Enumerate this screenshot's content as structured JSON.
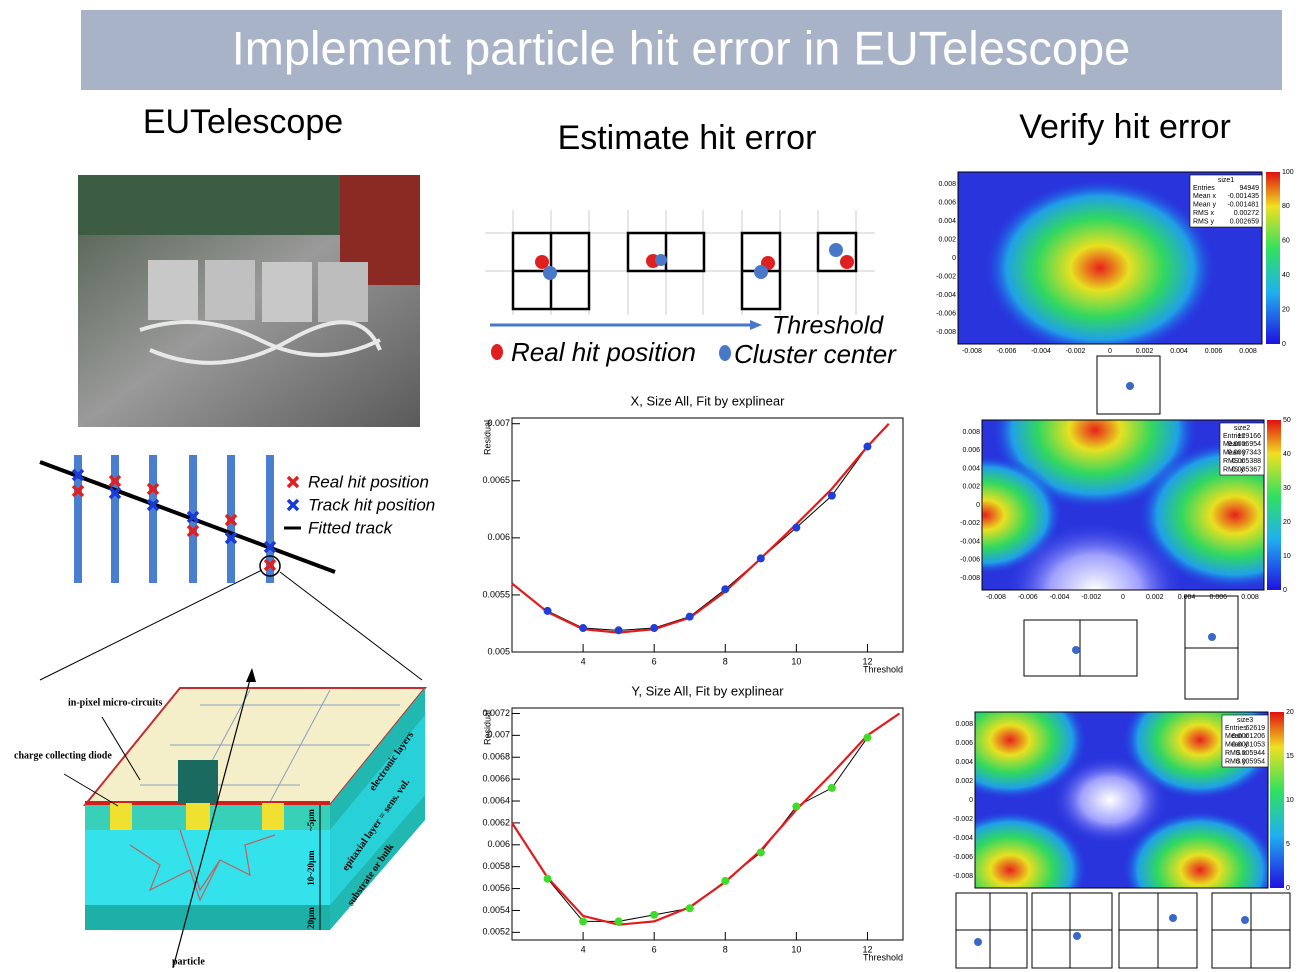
{
  "header": {
    "title": "Implement particle hit error in EUTelescope"
  },
  "columns": {
    "left": "EUTelescope",
    "middle": "Estimate hit error",
    "right": "Verify hit error"
  },
  "track_legend": [
    "Real hit position",
    "Track hit position",
    "Fitted track"
  ],
  "detector_labels": {
    "circuits": "in-pixel micro-circuits",
    "diode": "charge collecting diode",
    "electronic": "electronic layers",
    "epitaxial": "epitaxial layer = sens. vol.",
    "substrate": "substrate or bulk",
    "particle": "particle",
    "d1": "~5µm",
    "d2": "10~20µm",
    "d3": "20µm"
  },
  "threshold_diagram": {
    "threshold": "Threshold",
    "real": "Real hit position",
    "cluster": "Cluster center"
  },
  "chart_data": [
    {
      "type": "scatter",
      "title": "X, Size All, Fit by explinear",
      "y_label": "Residual",
      "x_label": "Threshold",
      "xlim": [
        2,
        13
      ],
      "ylim": [
        0.005,
        0.00705
      ],
      "xticks": [
        4,
        6,
        8,
        10,
        12
      ],
      "yticks": [
        0.005,
        0.0055,
        0.006,
        0.0065,
        0.007
      ],
      "points": {
        "color": "#1f3fd6",
        "line_color": "#000000",
        "x": [
          3,
          4,
          5,
          6,
          7,
          8,
          9,
          10,
          11,
          12
        ],
        "values": [
          0.00536,
          0.00521,
          0.00519,
          0.00521,
          0.00531,
          0.00555,
          0.00582,
          0.00609,
          0.00637,
          0.0068
        ]
      },
      "fit": {
        "color": "#e41a1c",
        "x": [
          2,
          3,
          4,
          5,
          6,
          7,
          8,
          9,
          10,
          11,
          12,
          12.6
        ],
        "values": [
          0.0056,
          0.00535,
          0.0052,
          0.00517,
          0.0052,
          0.0053,
          0.00553,
          0.00582,
          0.00612,
          0.00643,
          0.0068,
          0.007
        ]
      }
    },
    {
      "type": "scatter",
      "title": "Y, Size  All, Fit by explinear",
      "y_label": "Residual",
      "x_label": "Threshold",
      "xlim": [
        2,
        13
      ],
      "ylim": [
        0.00513,
        0.00725
      ],
      "xticks": [
        4,
        6,
        8,
        10,
        12
      ],
      "yticks": [
        0.0052,
        0.0054,
        0.0056,
        0.0058,
        0.006,
        0.0062,
        0.0064,
        0.0066,
        0.0068,
        0.007,
        0.0072
      ],
      "points": {
        "color": "#3cdc28",
        "line_color": "#000000",
        "x": [
          3,
          4,
          5,
          6,
          7,
          8,
          9,
          10,
          11,
          12
        ],
        "values": [
          0.00569,
          0.0053,
          0.0053,
          0.00536,
          0.00542,
          0.00567,
          0.00593,
          0.00635,
          0.00652,
          0.00698
        ]
      },
      "fit": {
        "color": "#e41a1c",
        "x": [
          2,
          3,
          4,
          5,
          6,
          7,
          8,
          9,
          10,
          11,
          12,
          12.9
        ],
        "values": [
          0.0062,
          0.0057,
          0.00535,
          0.00527,
          0.0053,
          0.00543,
          0.00566,
          0.00595,
          0.00632,
          0.00665,
          0.007,
          0.0072
        ]
      }
    }
  ],
  "heatmaps": [
    {
      "name": "size1",
      "stats": [
        [
          "Entries",
          "94949"
        ],
        [
          "Mean x",
          "-0.001435"
        ],
        [
          "Mean y",
          "-0.001481"
        ],
        [
          "RMS x",
          "0.00272"
        ],
        [
          "RMS y",
          "0.002659"
        ]
      ],
      "xticks": [
        -0.008,
        -0.006,
        -0.004,
        -0.002,
        0,
        0.002,
        0.004,
        0.006,
        0.008
      ],
      "yticks": [
        0.008,
        0.006,
        0.004,
        0.002,
        0,
        -0.002,
        -0.004,
        -0.006,
        -0.008
      ],
      "colorbar": [
        100,
        80,
        60,
        40,
        20,
        0
      ]
    },
    {
      "name": "size2",
      "stats": [
        [
          "Entries",
          "129166"
        ],
        [
          "Mean x",
          "0.0006954"
        ],
        [
          "Mean y",
          "0.0007343"
        ],
        [
          "RMS x",
          "0.005388"
        ],
        [
          "RMS y",
          "0.005367"
        ]
      ],
      "xticks": [
        -0.008,
        -0.006,
        -0.004,
        -0.002,
        0,
        0.002,
        0.004,
        0.006,
        0.008
      ],
      "yticks": [
        0.008,
        0.006,
        0.004,
        0.002,
        0,
        -0.002,
        -0.004,
        -0.006,
        -0.008
      ],
      "colorbar": [
        50,
        40,
        30,
        20,
        10,
        0
      ]
    },
    {
      "name": "size3",
      "stats": [
        [
          "Entries",
          "62619"
        ],
        [
          "Mean x",
          "0.0001206"
        ],
        [
          "Mean y",
          "0.0001053"
        ],
        [
          "RMS x",
          "0.005944"
        ],
        [
          "RMS y",
          "0.005954"
        ]
      ],
      "xticks": [],
      "yticks": [
        0.008,
        0.006,
        0.004,
        0.002,
        0,
        -0.002,
        -0.004,
        -0.006,
        -0.008
      ],
      "colorbar": [
        20,
        15,
        10,
        5,
        0
      ]
    }
  ]
}
